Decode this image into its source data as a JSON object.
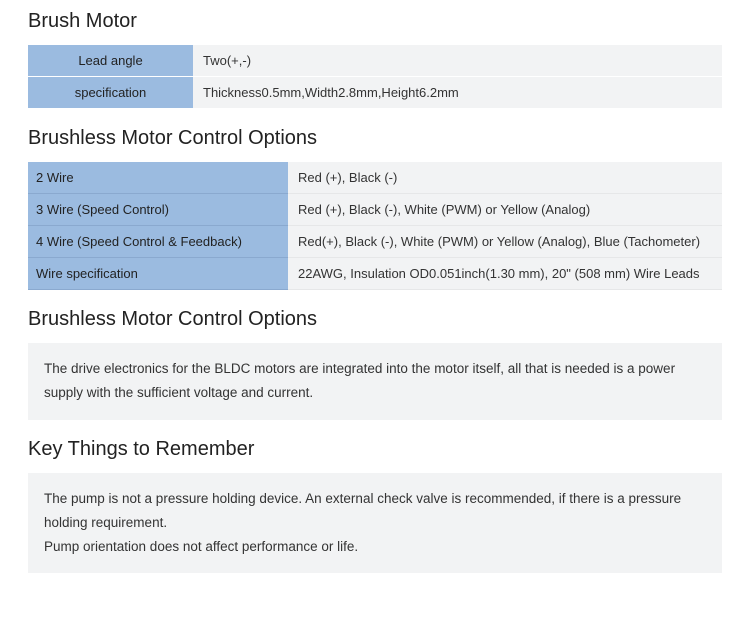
{
  "section1": {
    "title": "Brush Motor",
    "rows": [
      {
        "label": "Lead angle",
        "value": "Two(+,-)"
      },
      {
        "label": "specification",
        "value": "Thickness0.5mm,Width2.8mm,Height6.2mm"
      }
    ]
  },
  "section2": {
    "title": "Brushless Motor Control Options",
    "rows": [
      {
        "label": "2 Wire",
        "value": "Red (+), Black (-)"
      },
      {
        "label": "3 Wire (Speed Control)",
        "value": "Red (+), Black (-), White (PWM) or Yellow (Analog)"
      },
      {
        "label": "4 Wire (Speed Control & Feedback)",
        "value": "Red(+), Black (-), White (PWM) or Yellow (Analog), Blue (Tachometer)"
      },
      {
        "label": "Wire specification",
        "value": "22AWG, Insulation OD0.051inch(1.30 mm), 20\" (508 mm) Wire Leads"
      }
    ]
  },
  "section3": {
    "title": "Brushless Motor Control Options",
    "text": "The drive electronics for the BLDC motors are integrated into the motor itself, all that is needed is a power supply with the sufficient voltage and current."
  },
  "section4": {
    "title": "Key Things to Remember",
    "line1": "The pump is not a pressure holding device. An external check valve is recommended, if there is a pressure holding requirement.",
    "line2": "Pump orientation does not affect performance or life."
  },
  "colors": {
    "header_bg": "#9bbbe0",
    "value_bg": "#f2f3f4",
    "text": "#333333",
    "title": "#222222"
  }
}
